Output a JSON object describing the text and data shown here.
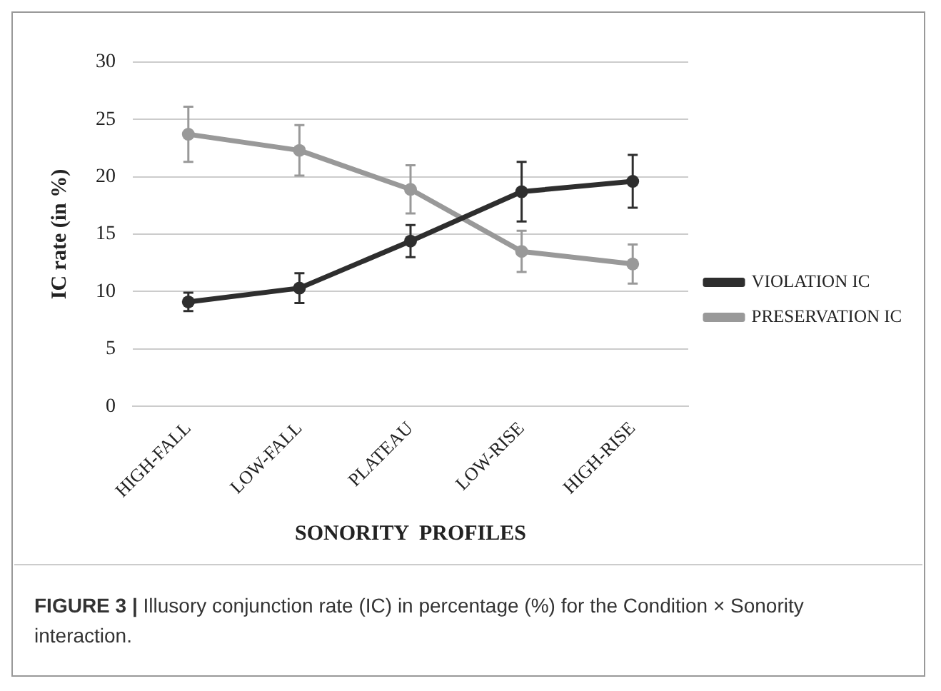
{
  "chart_data": {
    "type": "line",
    "xlabel": "SONORITY  PROFILES",
    "ylabel": "IC rate (in %)",
    "categories": [
      "HIGH-FALL",
      "LOW-FALL",
      "PLATEAU",
      "LOW-RISE",
      "HIGH-RISE"
    ],
    "series": [
      {
        "name": "VIOLATION IC",
        "color": "#2e2e2e",
        "values": [
          9.1,
          10.3,
          14.4,
          18.7,
          19.6
        ],
        "errors": [
          0.8,
          1.3,
          1.4,
          2.6,
          2.3
        ]
      },
      {
        "name": "PRESERVATION IC",
        "color": "#999999",
        "values": [
          23.7,
          22.3,
          18.9,
          13.5,
          12.4
        ],
        "errors": [
          2.4,
          2.2,
          2.1,
          1.8,
          1.7
        ]
      }
    ],
    "ylim": [
      0,
      30
    ],
    "yticks": [
      0,
      5,
      10,
      15,
      20,
      25,
      30
    ],
    "grid": "y",
    "legend": "right",
    "marker": "circle",
    "line_style": "solid",
    "annotations": [
      "FIGURE 3 | Illusory conjunction rate (IC) in percentage (%) for the Condition × Sonority interaction."
    ]
  }
}
